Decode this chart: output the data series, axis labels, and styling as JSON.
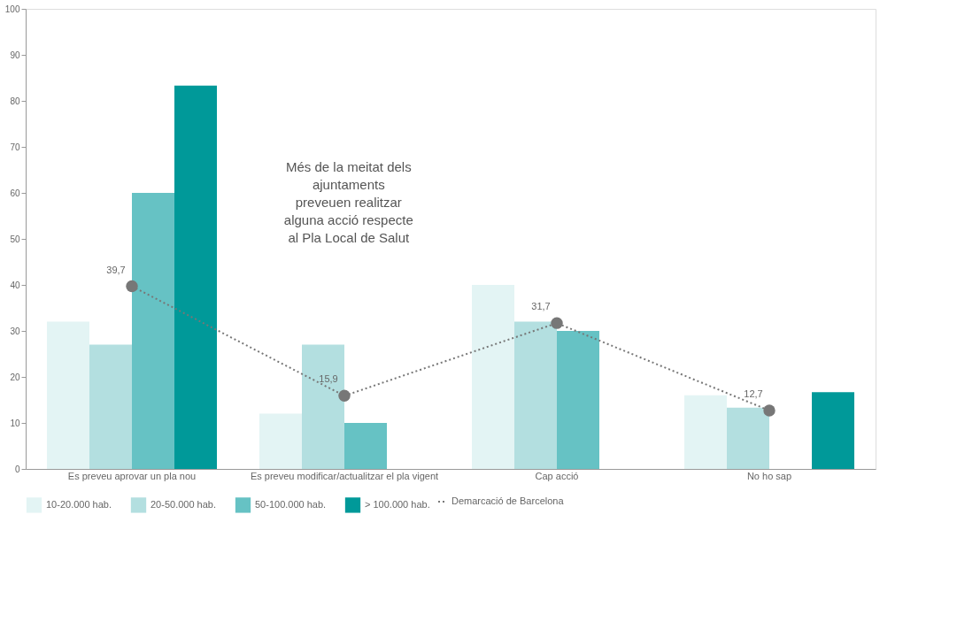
{
  "chart_data": {
    "type": "bar",
    "categories": [
      "Es preveu aprovar un pla nou",
      "Es preveu modificar/actualitzar el pla vigent",
      "Cap acció",
      "No ho sap"
    ],
    "series": [
      {
        "name": "10-20.000 hab.",
        "color": "#e3f4f4",
        "values": [
          32,
          12,
          40,
          16
        ]
      },
      {
        "name": "20-50.000 hab.",
        "color": "#b3dfe0",
        "values": [
          27,
          27,
          32,
          13.3
        ]
      },
      {
        "name": "50-100.000 hab.",
        "color": "#66c2c4",
        "values": [
          60,
          10,
          30,
          null
        ]
      },
      {
        "name": "> 100.000 hab.",
        "color": "#009999",
        "values": [
          83.3,
          null,
          null,
          16.7
        ]
      },
      {
        "name": "Demarcació de Barcelona",
        "type": "line",
        "color": "#777777",
        "line_style": "dotted",
        "marker": "circle",
        "values": [
          39.7,
          15.9,
          31.7,
          12.7
        ],
        "value_labels": [
          "39,7",
          "15,9",
          "31,7",
          "12,7"
        ]
      }
    ],
    "ylim": [
      0,
      100
    ],
    "yticks": [
      0,
      10,
      20,
      30,
      40,
      50,
      60,
      70,
      80,
      90,
      100
    ],
    "grid": false,
    "legend": "bottom",
    "annotations": [
      "Més de la meitat dels\najuntaments\npreveuen realitzar\nalguna acció respecte\nal Pla Local de Salut"
    ]
  }
}
